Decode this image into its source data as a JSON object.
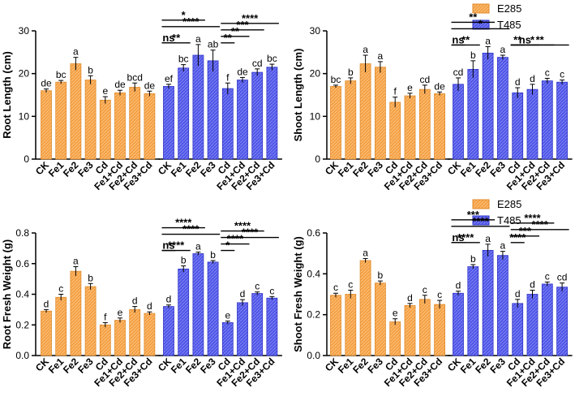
{
  "colors": {
    "e285": "#F5A044",
    "t485": "#4F55E8",
    "e285_edge": "#E08A2A",
    "t485_edge": "#2F34C8"
  },
  "legends": [
    {
      "entries": [
        {
          "name": "E285",
          "series": "E285"
        },
        {
          "name": "T485",
          "series": "T485"
        }
      ]
    },
    {
      "entries": [
        {
          "name": "E285",
          "series": "E285"
        },
        {
          "name": "T485",
          "series": "T485"
        }
      ]
    }
  ],
  "chart_data": [
    {
      "type": "bar",
      "ylabel": "Root Length (cm)",
      "ylim": [
        0,
        30
      ],
      "yticks": [
        "0",
        "10",
        "20",
        "30"
      ],
      "categories": [
        "CK",
        "Fe1",
        "Fe2",
        "Fe3",
        "Cd",
        "Fe1+Cd",
        "Fe2+Cd",
        "Fe3+Cd"
      ],
      "series": [
        {
          "name": "E285",
          "values": [
            16.0,
            18.0,
            22.3,
            18.5,
            13.8,
            15.5,
            16.8,
            15.3
          ],
          "errors": [
            0.4,
            0.4,
            1.5,
            1.0,
            0.8,
            0.6,
            1.0,
            0.6
          ],
          "letters": [
            "de",
            "bc",
            "a",
            "b",
            "e",
            "de",
            "bcd",
            "de"
          ]
        },
        {
          "name": "T485",
          "values": [
            17.0,
            21.3,
            24.3,
            23.0,
            16.5,
            18.5,
            20.3,
            21.5
          ],
          "errors": [
            0.5,
            0.8,
            2.5,
            2.5,
            1.3,
            0.6,
            0.8,
            0.7
          ],
          "letters": [
            "ef",
            "bc",
            "a",
            "ab",
            "f",
            "de",
            "cd",
            "bc"
          ]
        }
      ],
      "comparisons": [
        {
          "bars": [
            0,
            0
          ],
          "text": "ns",
          "level": 0
        },
        {
          "bars": [
            0,
            1
          ],
          "text": "**",
          "level": 0
        },
        {
          "bars": [
            0,
            2
          ],
          "text": "*",
          "level": 2
        },
        {
          "bars": [
            0,
            3
          ],
          "text": "****",
          "level": 1
        },
        {
          "bars": [
            4,
            4
          ],
          "text": "**",
          "level": 0
        },
        {
          "bars": [
            4,
            5
          ],
          "text": "**",
          "level": 1
        },
        {
          "bars": [
            4,
            6
          ],
          "text": "***",
          "level": 2
        },
        {
          "bars": [
            4,
            7
          ],
          "text": "****",
          "level": 3
        }
      ]
    },
    {
      "type": "bar",
      "ylabel": "Shoot Length (cm)",
      "ylim": [
        0,
        30
      ],
      "yticks": [
        "0",
        "10",
        "20",
        "30"
      ],
      "categories": [
        "CK",
        "Fe1",
        "Fe2",
        "Fe3",
        "Cd",
        "Fe1+Cd",
        "Fe2+Cd",
        "Fe3+Cd"
      ],
      "series": [
        {
          "name": "E285",
          "values": [
            17.0,
            18.3,
            22.3,
            21.5,
            13.3,
            14.8,
            16.3,
            15.3
          ],
          "errors": [
            0.3,
            0.7,
            2.0,
            1.3,
            1.2,
            0.6,
            1.0,
            0.4
          ],
          "letters": [
            "bc",
            "b",
            "a",
            "a",
            "f",
            "e",
            "cd",
            "de"
          ]
        },
        {
          "name": "T485",
          "values": [
            17.5,
            21.0,
            24.8,
            23.8,
            15.5,
            16.3,
            18.3,
            18.0
          ],
          "errors": [
            1.5,
            2.0,
            1.5,
            0.5,
            1.2,
            1.2,
            0.6,
            0.5
          ],
          "letters": [
            "cd",
            "b",
            "a",
            "a",
            "d",
            "d",
            "c",
            "c"
          ]
        }
      ],
      "comparisons": [
        {
          "bars": [
            0,
            0
          ],
          "text": "ns",
          "level": 0
        },
        {
          "bars": [
            0,
            1
          ],
          "text": "**",
          "level": 0
        },
        {
          "bars": [
            0,
            2
          ],
          "text": "**",
          "level": 2
        },
        {
          "bars": [
            0,
            3
          ],
          "text": "*",
          "level": 1
        },
        {
          "bars": [
            4,
            4
          ],
          "text": "**",
          "level": 0
        },
        {
          "bars": [
            4,
            5
          ],
          "text": "ns",
          "level": 0
        },
        {
          "bars": [
            4,
            6
          ],
          "text": "*",
          "level": 0
        },
        {
          "bars": [
            4,
            7
          ],
          "text": "**",
          "level": 0
        }
      ]
    },
    {
      "type": "bar",
      "ylabel": "Root Fresh Weight (g)",
      "ylim": [
        0,
        0.8
      ],
      "yticks": [
        "0.0",
        "0.2",
        "0.4",
        "0.6",
        "0.8"
      ],
      "categories": [
        "CK",
        "Fe1",
        "Fe2",
        "Fe3",
        "Cd",
        "Fe1+Cd",
        "Fe2+Cd",
        "Fe3+Cd"
      ],
      "series": [
        {
          "name": "E285",
          "values": [
            0.29,
            0.38,
            0.55,
            0.45,
            0.2,
            0.23,
            0.3,
            0.275
          ],
          "errors": [
            0.01,
            0.02,
            0.03,
            0.02,
            0.015,
            0.015,
            0.02,
            0.01
          ],
          "letters": [
            "d",
            "c",
            "a",
            "b",
            "f",
            "e",
            "d",
            "d"
          ]
        },
        {
          "name": "T485",
          "values": [
            0.32,
            0.565,
            0.665,
            0.61,
            0.215,
            0.345,
            0.405,
            0.375
          ],
          "errors": [
            0.01,
            0.02,
            0.01,
            0.01,
            0.01,
            0.02,
            0.01,
            0.01
          ],
          "letters": [
            "d",
            "b",
            "a",
            "b",
            "e",
            "d",
            "c",
            "c"
          ]
        }
      ],
      "comparisons": [
        {
          "bars": [
            0,
            0
          ],
          "text": "ns",
          "level": 0
        },
        {
          "bars": [
            0,
            1
          ],
          "text": "****",
          "level": 0
        },
        {
          "bars": [
            0,
            2
          ],
          "text": "****",
          "level": 2
        },
        {
          "bars": [
            0,
            3
          ],
          "text": "****",
          "level": 1
        },
        {
          "bars": [
            4,
            4
          ],
          "text": "*",
          "level": 0
        },
        {
          "bars": [
            4,
            5
          ],
          "text": "****",
          "level": 1
        },
        {
          "bars": [
            4,
            6
          ],
          "text": "****",
          "level": 3
        },
        {
          "bars": [
            4,
            7
          ],
          "text": "****",
          "level": 2
        }
      ]
    },
    {
      "type": "bar",
      "ylabel": "Shoot Fresh Weight (g)",
      "ylim": [
        0,
        0.6
      ],
      "yticks": [
        "0.0",
        "0.2",
        "0.4",
        "0.6"
      ],
      "categories": [
        "CK",
        "Fe1",
        "Fe2",
        "Fe3",
        "Cd",
        "Fe1+Cd",
        "Fe2+Cd",
        "Fe3+Cd"
      ],
      "series": [
        {
          "name": "E285",
          "values": [
            0.295,
            0.3,
            0.465,
            0.355,
            0.165,
            0.245,
            0.275,
            0.25
          ],
          "errors": [
            0.01,
            0.02,
            0.01,
            0.01,
            0.015,
            0.01,
            0.02,
            0.02
          ],
          "letters": [
            "c",
            "c",
            "a",
            "b",
            "e",
            "d",
            "c",
            "c"
          ]
        },
        {
          "name": "T485",
          "values": [
            0.305,
            0.435,
            0.515,
            0.49,
            0.255,
            0.3,
            0.35,
            0.335
          ],
          "errors": [
            0.01,
            0.01,
            0.03,
            0.02,
            0.02,
            0.02,
            0.01,
            0.02
          ],
          "letters": [
            "d",
            "b",
            "a",
            "a",
            "d",
            "d",
            "c",
            "cd"
          ]
        }
      ],
      "comparisons": [
        {
          "bars": [
            0,
            0
          ],
          "text": "ns",
          "level": 0
        },
        {
          "bars": [
            0,
            1
          ],
          "text": "****",
          "level": 0
        },
        {
          "bars": [
            0,
            2
          ],
          "text": "***",
          "level": 2
        },
        {
          "bars": [
            0,
            3
          ],
          "text": "****",
          "level": 1
        },
        {
          "bars": [
            4,
            4
          ],
          "text": "****",
          "level": 0
        },
        {
          "bars": [
            4,
            5
          ],
          "text": "***",
          "level": 1
        },
        {
          "bars": [
            4,
            6
          ],
          "text": "****",
          "level": 3
        },
        {
          "bars": [
            4,
            7
          ],
          "text": "****",
          "level": 2
        }
      ]
    }
  ]
}
